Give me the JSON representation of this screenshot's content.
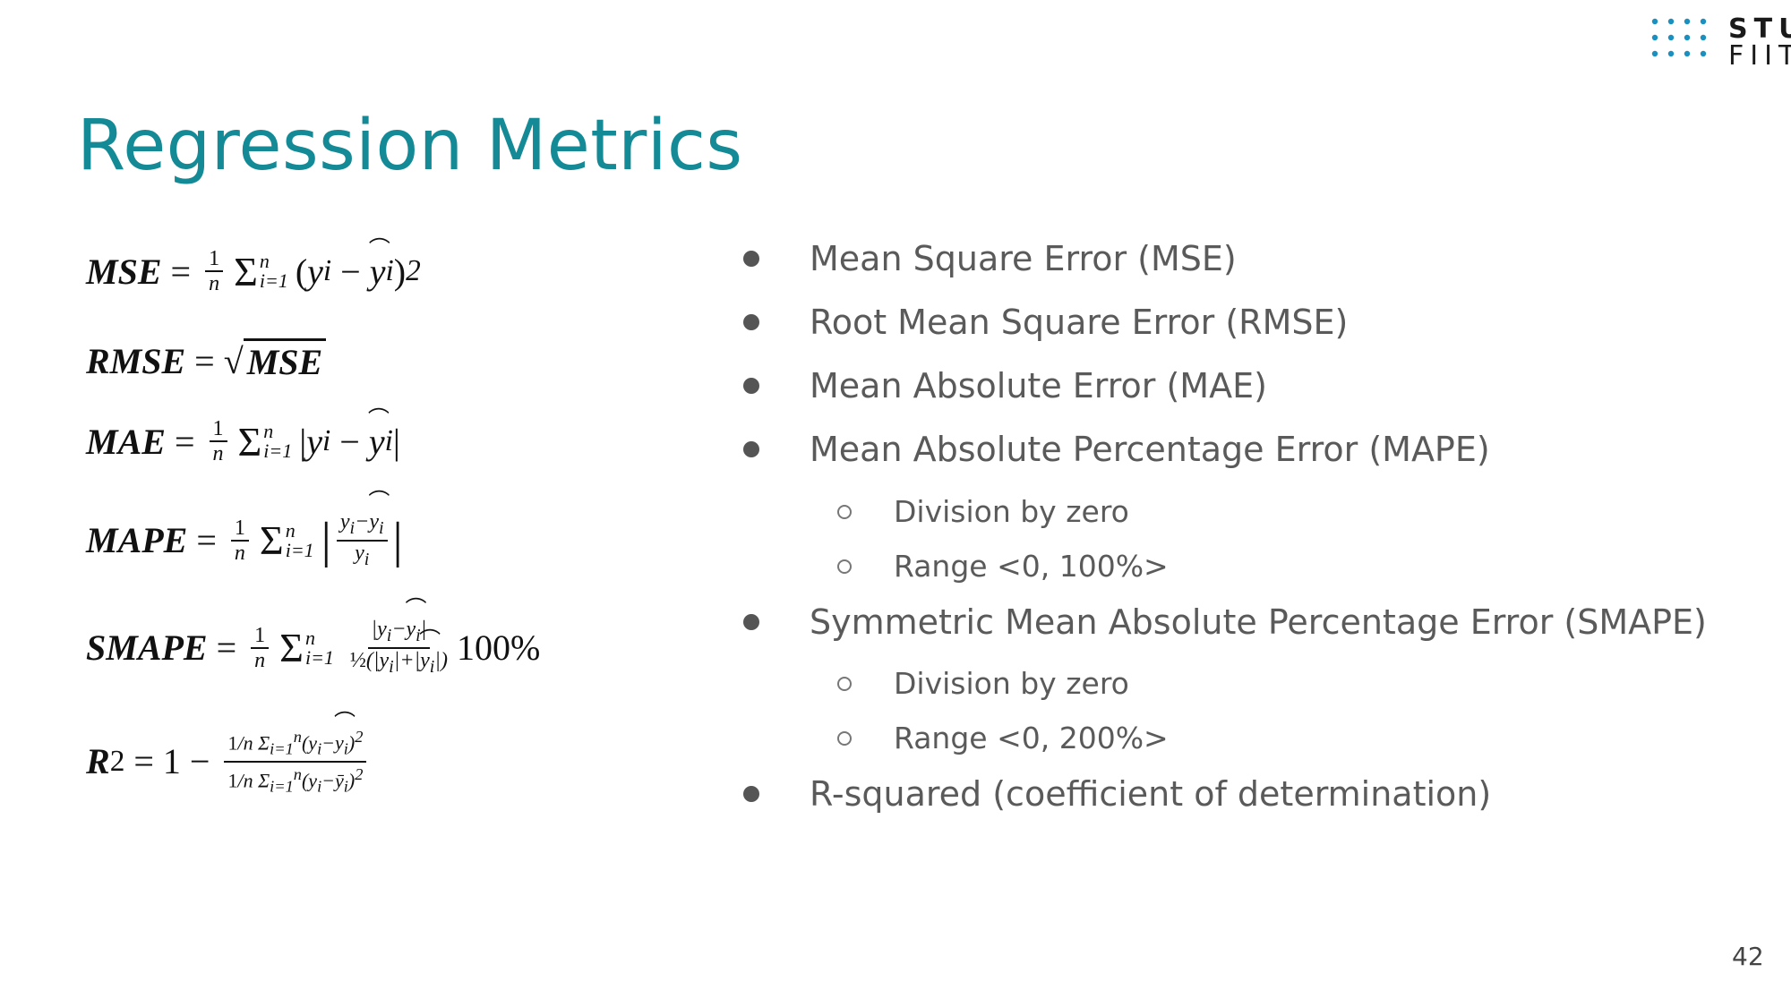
{
  "slide": {
    "title": "Regression Metrics",
    "page_number": "42"
  },
  "logo": {
    "line1": "STU",
    "line2": "FIIT",
    "dot_color": "#1a8fc0"
  },
  "formulas": {
    "mse_label": "MSE",
    "rmse_label": "RMSE",
    "rmse_rhs": "MSE",
    "mae_label": "MAE",
    "mape_label": "MAPE",
    "smape_label": "SMAPE",
    "smape_scale": "100%",
    "r2_label": "R"
  },
  "bullets": [
    {
      "level": 1,
      "text": "Mean Square Error (MSE)"
    },
    {
      "level": 1,
      "text": "Root Mean Square Error (RMSE)"
    },
    {
      "level": 1,
      "text": "Mean Absolute Error (MAE)"
    },
    {
      "level": 1,
      "text": "Mean Absolute Percentage Error (MAPE)"
    },
    {
      "level": 2,
      "text": "Division by zero"
    },
    {
      "level": 2,
      "text": "Range <0, 100%>"
    },
    {
      "level": 1,
      "text": "Symmetric Mean Absolute Percentage Error (SMAPE)"
    },
    {
      "level": 2,
      "text": "Division by zero"
    },
    {
      "level": 2,
      "text": "Range <0, 200%>"
    },
    {
      "level": 1,
      "text": "R-squared (coefficient of determination)"
    }
  ],
  "colors": {
    "title": "#138a95",
    "bullet_text": "#5a5a5a"
  }
}
